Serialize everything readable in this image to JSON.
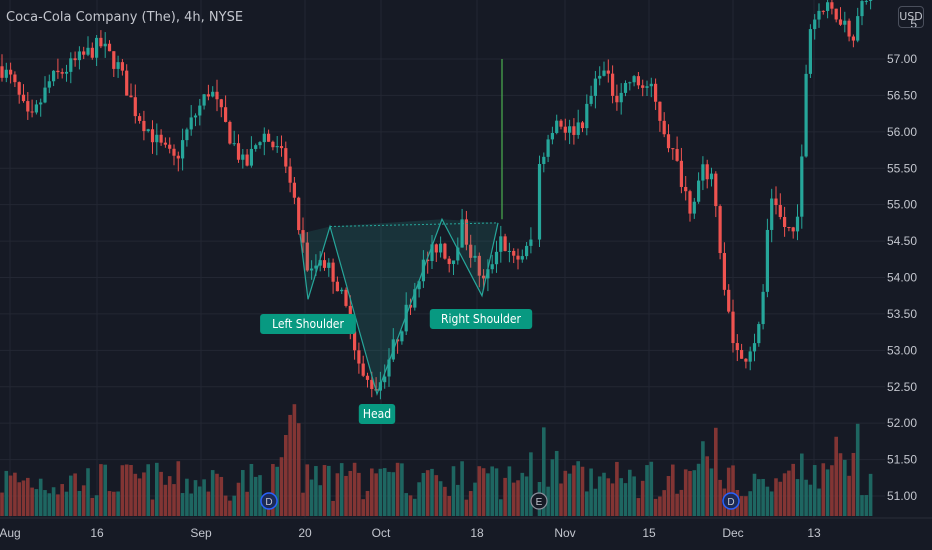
{
  "chart_data": {
    "type": "candlestick",
    "title": "Coca-Cola Company (The), 4h, NYSE",
    "currency": "USD",
    "price_ticks": [
      "57.00",
      "56.50",
      "56.00",
      "55.50",
      "55.00",
      "54.50",
      "54.00",
      "53.50",
      "53.00",
      "52.50",
      "52.00",
      "51.50",
      "51.00"
    ],
    "price_range": [
      50.8,
      57.7
    ],
    "top_partial_label": "5",
    "x_ticks": [
      "Aug",
      "16",
      "Sep",
      "20",
      "Oct",
      "18",
      "Nov",
      "15",
      "Dec",
      "13"
    ],
    "annotations": {
      "left_shoulder": "Left Shoulder",
      "head": "Head",
      "right_shoulder": "Right Shoulder"
    },
    "pattern_points": [
      [
        54.6,
        "Left Shoulder top"
      ],
      [
        53.7,
        "Left Shoulder low"
      ],
      [
        54.75,
        "neck left"
      ],
      [
        52.4,
        "Head low"
      ],
      [
        54.9,
        "neck right"
      ],
      [
        53.7,
        "Right Shoulder low"
      ],
      [
        54.75,
        "neckline end"
      ]
    ],
    "target_line": {
      "from": 54.8,
      "to": 57.0
    },
    "events": [
      {
        "label": "D",
        "x_tick": "Sep"
      },
      {
        "label": "E",
        "x_tick": "Oct"
      },
      {
        "label": "D",
        "x_tick": "Dec"
      }
    ],
    "colors": {
      "up": "#26a69a",
      "down": "#ef5350",
      "pattern": "#26a69a",
      "label_bg": "#089981",
      "target": "#4caf50"
    }
  }
}
